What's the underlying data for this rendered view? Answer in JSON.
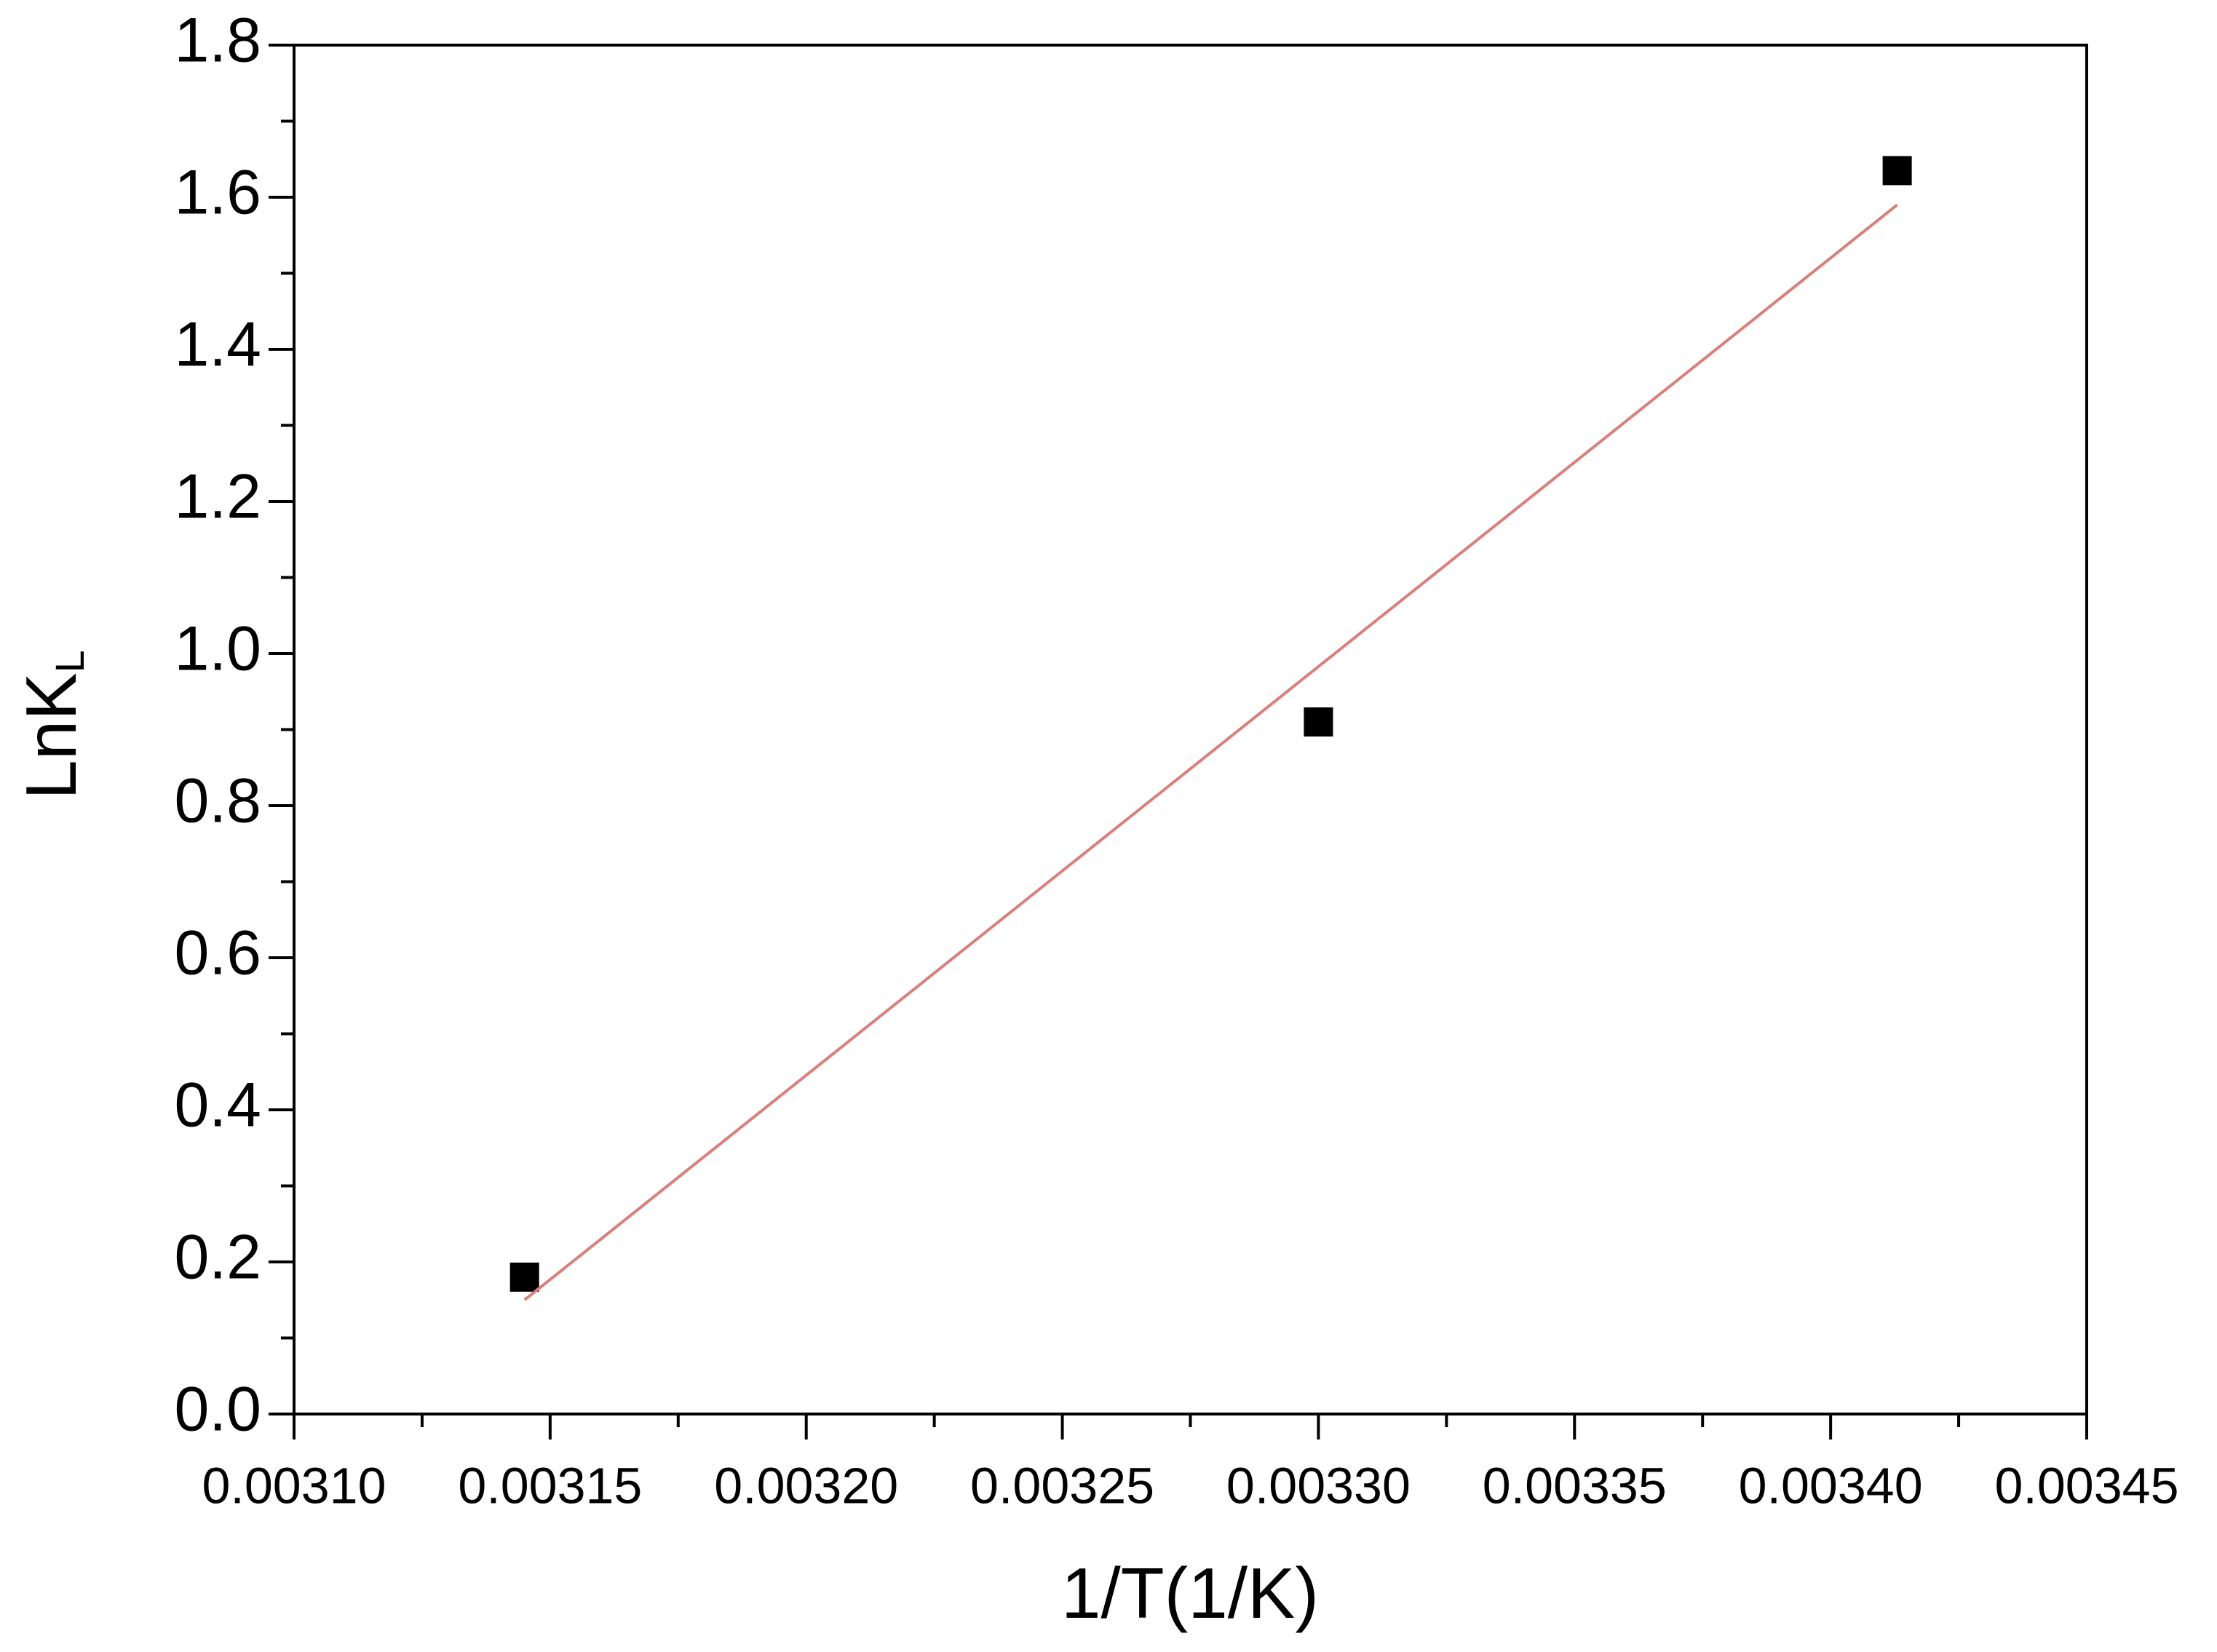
{
  "chart_data": {
    "type": "scatter",
    "x_label": "1/T(1/K)",
    "y_label": {
      "main": "LnK",
      "subscript": "L"
    },
    "xlim": [
      0.0031,
      0.00345
    ],
    "ylim": [
      0,
      1.8
    ],
    "xticks": [
      {
        "value": 0.0031,
        "label": "0.00310"
      },
      {
        "value": 0.00315,
        "label": "0.00315"
      },
      {
        "value": 0.0032,
        "label": "0.00320"
      },
      {
        "value": 0.00325,
        "label": "0.00325"
      },
      {
        "value": 0.0033,
        "label": "0.00330"
      },
      {
        "value": 0.00335,
        "label": "0.00335"
      },
      {
        "value": 0.0034,
        "label": "0.00340"
      },
      {
        "value": 0.00345,
        "label": "0.00345"
      }
    ],
    "yticks": [
      {
        "value": 0,
        "label": "0.0"
      },
      0.2,
      0.4,
      0.6,
      0.8,
      {
        "value": 1,
        "label": "1.0"
      },
      1.2,
      1.4,
      1.6,
      1.8
    ],
    "xminorticks": [
      0.003125,
      0.003175,
      0.003225,
      0.003275,
      0.003325,
      0.003375,
      0.003425
    ],
    "yminorticks": [
      0.1,
      0.3,
      0.5,
      0.7,
      0.9,
      1.1,
      1.3,
      1.5,
      1.7
    ],
    "grid": false,
    "series": [
      {
        "style": "marker",
        "marker": "square",
        "color": "#000000",
        "x": [
          0.003145,
          0.0033,
          0.003413
        ],
        "values": [
          0.18,
          0.91,
          1.635
        ]
      },
      {
        "style": "line",
        "color": "#d9807c",
        "x": [
          0.003145,
          0.003413
        ],
        "values": [
          0.15,
          1.59
        ]
      }
    ]
  }
}
